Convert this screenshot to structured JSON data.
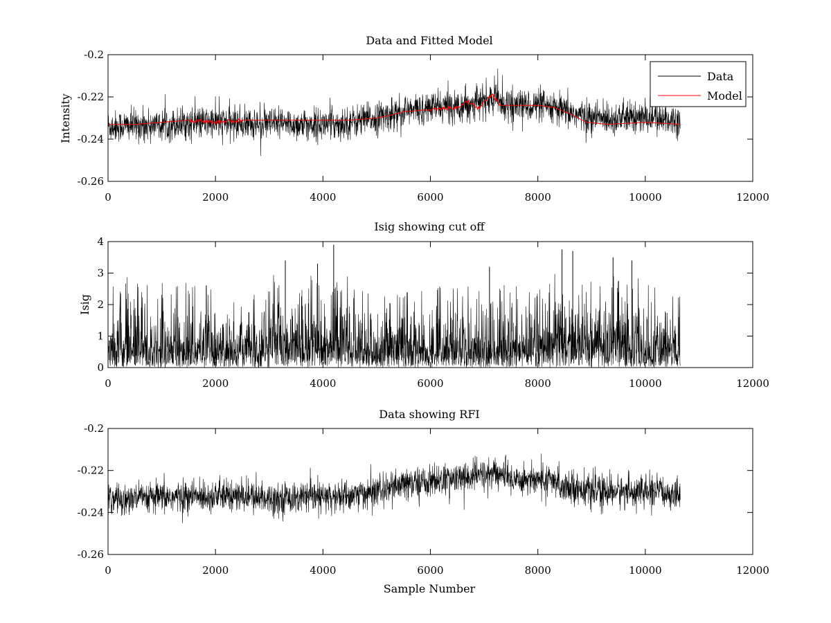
{
  "figure": {
    "colors": {
      "data": "#000000",
      "model": "#ff0000",
      "background": "#ffffff"
    }
  },
  "chart_data": [
    {
      "type": "line",
      "title": "Data and Fitted Model",
      "xlabel": "",
      "ylabel": "Intensity",
      "xlim": [
        0,
        12000
      ],
      "ylim": [
        -0.26,
        -0.2
      ],
      "xticks": [
        "0",
        "2000",
        "4000",
        "6000",
        "8000",
        "10000",
        "12000"
      ],
      "yticks": [
        "-0.26",
        "-0.24",
        "-0.22",
        "-0.2"
      ],
      "legend": {
        "position": "top-right",
        "entries": [
          "Data",
          "Model"
        ]
      },
      "series": [
        {
          "name": "Data",
          "color": "#000000",
          "n_samples": 10650,
          "noise_amplitude": 0.005,
          "trend_x": [
            0,
            1000,
            2000,
            3000,
            4000,
            4500,
            5000,
            5500,
            6000,
            6500,
            7000,
            7200,
            7500,
            8000,
            8500,
            9000,
            10000,
            10650
          ],
          "trend_y": [
            -0.234,
            -0.233,
            -0.232,
            -0.233,
            -0.233,
            -0.232,
            -0.23,
            -0.227,
            -0.225,
            -0.224,
            -0.222,
            -0.221,
            -0.224,
            -0.224,
            -0.227,
            -0.23,
            -0.23,
            -0.231
          ]
        },
        {
          "name": "Model",
          "color": "#ff0000",
          "x": [
            0,
            500,
            1000,
            1500,
            2000,
            2500,
            3000,
            3500,
            4000,
            4500,
            5000,
            5200,
            5500,
            6000,
            6500,
            6700,
            6900,
            7000,
            7150,
            7300,
            7600,
            8000,
            8300,
            8600,
            8900,
            9300,
            10000,
            10650
          ],
          "y": [
            -0.233,
            -0.233,
            -0.232,
            -0.231,
            -0.232,
            -0.231,
            -0.231,
            -0.231,
            -0.231,
            -0.231,
            -0.23,
            -0.229,
            -0.227,
            -0.226,
            -0.225,
            -0.222,
            -0.226,
            -0.222,
            -0.219,
            -0.224,
            -0.224,
            -0.224,
            -0.225,
            -0.228,
            -0.232,
            -0.233,
            -0.232,
            -0.233
          ]
        }
      ]
    },
    {
      "type": "line",
      "title": "Isig showing cut off",
      "xlabel": "",
      "ylabel": "Isig",
      "xlim": [
        0,
        12000
      ],
      "ylim": [
        0,
        4
      ],
      "xticks": [
        "0",
        "2000",
        "4000",
        "6000",
        "8000",
        "10000",
        "12000"
      ],
      "yticks": [
        "0",
        "1",
        "2",
        "3",
        "4"
      ],
      "series": [
        {
          "name": "Isig",
          "color": "#000000",
          "n_samples": 10650,
          "typical_range": [
            0,
            2.5
          ],
          "max_value": 3.9,
          "peaks_x": [
            3300,
            3900,
            4200,
            7100,
            8450,
            8650,
            9400,
            9750
          ],
          "peaks_y": [
            3.4,
            3.3,
            3.9,
            3.2,
            3.75,
            3.7,
            3.5,
            3.4
          ]
        }
      ]
    },
    {
      "type": "line",
      "title": "Data showing RFI",
      "xlabel": "Sample Number",
      "ylabel": "",
      "xlim": [
        0,
        12000
      ],
      "ylim": [
        -0.26,
        -0.2
      ],
      "xticks": [
        "0",
        "2000",
        "4000",
        "6000",
        "8000",
        "10000",
        "12000"
      ],
      "yticks": [
        "-0.26",
        "-0.24",
        "-0.22",
        "-0.2"
      ],
      "series": [
        {
          "name": "Data",
          "color": "#000000",
          "n_samples": 10650,
          "noise_amplitude": 0.005,
          "trend_x": [
            0,
            1000,
            2000,
            3000,
            4000,
            4500,
            5000,
            5500,
            6000,
            6500,
            7000,
            7200,
            7500,
            8000,
            8500,
            9000,
            10000,
            10650
          ],
          "trend_y": [
            -0.234,
            -0.233,
            -0.232,
            -0.233,
            -0.233,
            -0.232,
            -0.23,
            -0.227,
            -0.225,
            -0.224,
            -0.222,
            -0.221,
            -0.224,
            -0.224,
            -0.227,
            -0.23,
            -0.23,
            -0.231
          ]
        }
      ]
    }
  ]
}
